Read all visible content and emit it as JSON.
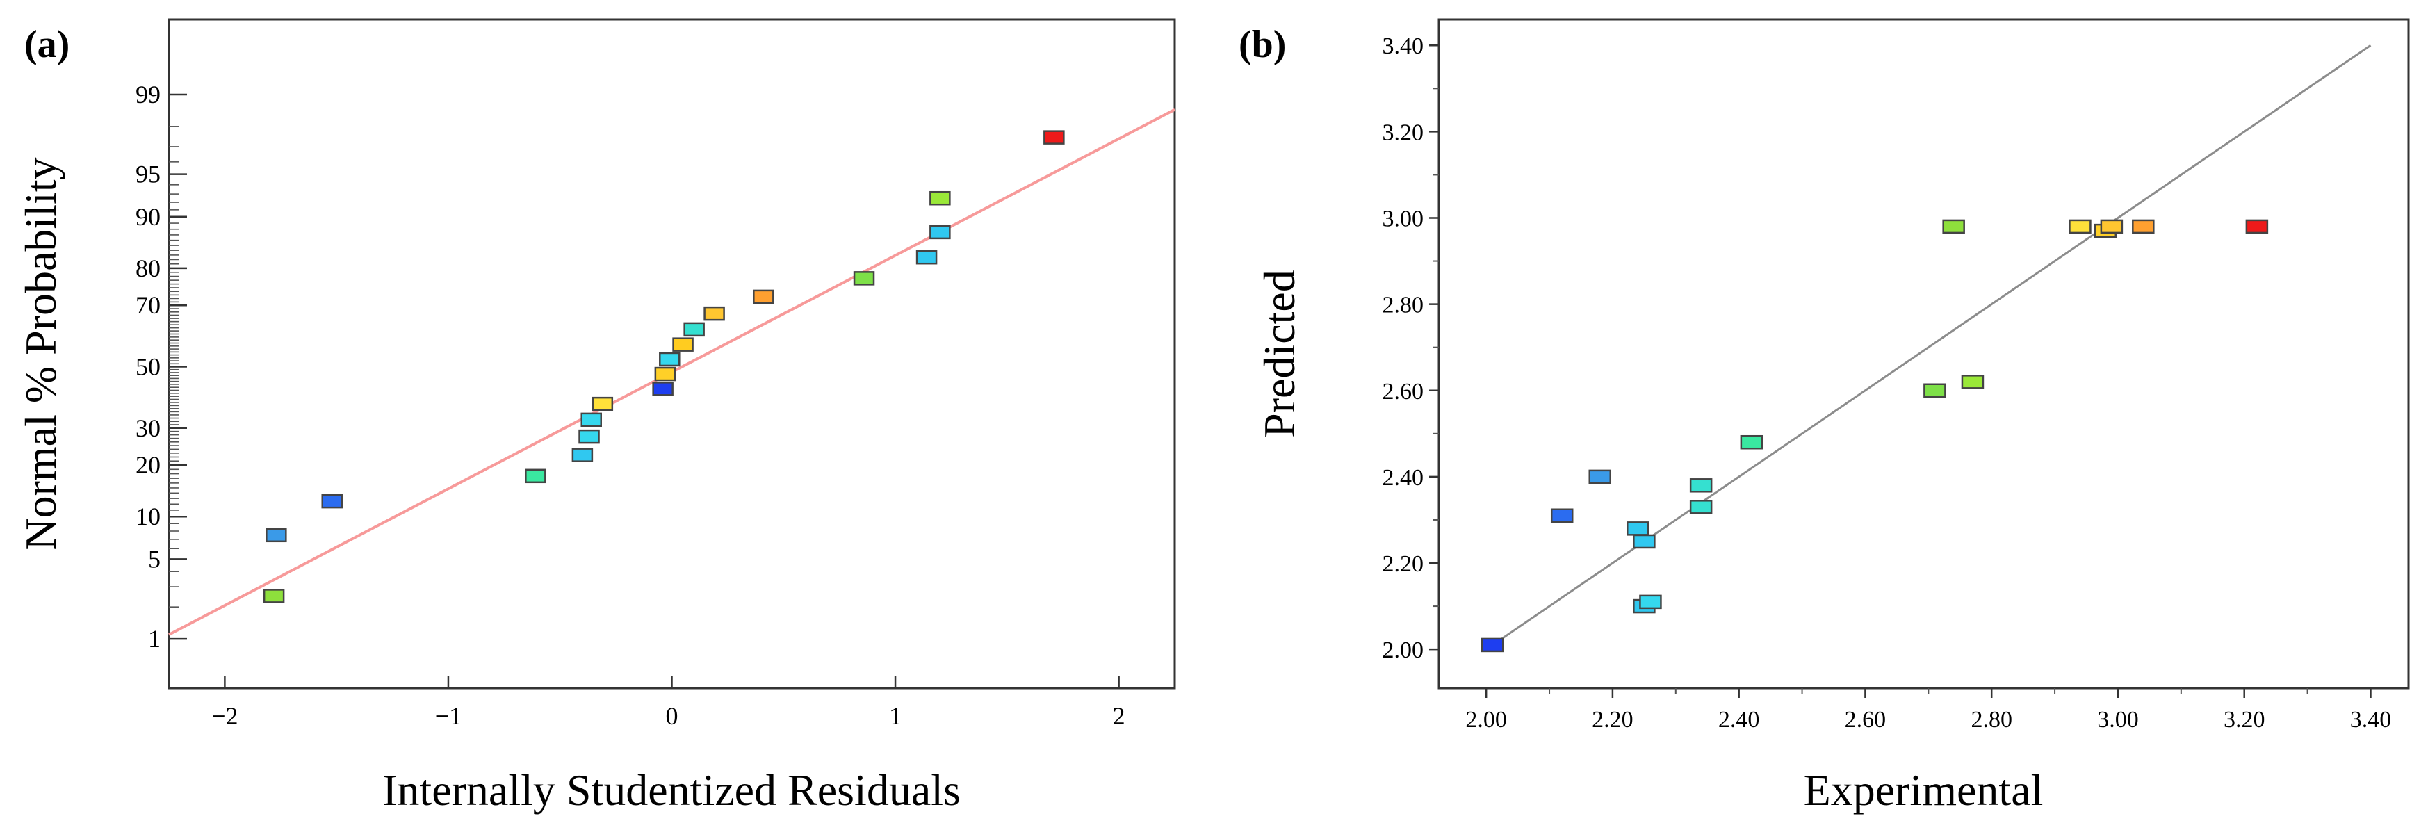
{
  "colors": {
    "fit_line_a": "#f79a9a",
    "fit_line_b": "#8c8c8c",
    "axis": "#333333"
  },
  "chart_data": [
    {
      "panel": "(a)",
      "type": "scatter",
      "xlabel": "Internally Studentized Residuals",
      "ylabel": "Normal % Probability",
      "xlim": [
        -2.25,
        2.25
      ],
      "x_ticks": [
        -2,
        -1,
        0,
        1,
        2
      ],
      "x_tick_labels": [
        "−2",
        "−1",
        "0",
        "1",
        "2"
      ],
      "y_scale": "normal-probability",
      "ylim": [
        0.3,
        99.85
      ],
      "y_ticks": [
        1,
        5,
        10,
        20,
        30,
        50,
        70,
        80,
        90,
        95,
        99
      ],
      "y_tick_labels": [
        "1",
        "5",
        "10",
        "20",
        "30",
        "50",
        "70",
        "80",
        "90",
        "95",
        "99"
      ],
      "reference_line": {
        "x": [
          -2.25,
          2.25
        ],
        "y": [
          1.1,
          98.6
        ]
      },
      "points": [
        {
          "x": -1.78,
          "y": 2.5,
          "color": "#8ee03c"
        },
        {
          "x": -1.77,
          "y": 7.5,
          "color": "#3a9ae8"
        },
        {
          "x": -1.52,
          "y": 12.5,
          "color": "#2b6cf0"
        },
        {
          "x": -0.61,
          "y": 17.5,
          "color": "#3ae8a0"
        },
        {
          "x": -0.4,
          "y": 22.5,
          "color": "#30c8f0"
        },
        {
          "x": -0.37,
          "y": 27.5,
          "color": "#35d8ee"
        },
        {
          "x": -0.36,
          "y": 32.5,
          "color": "#35d8ee"
        },
        {
          "x": -0.31,
          "y": 37.5,
          "color": "#ffe13a"
        },
        {
          "x": -0.04,
          "y": 42.5,
          "color": "#1e3ef0"
        },
        {
          "x": -0.03,
          "y": 47.5,
          "color": "#ffd028"
        },
        {
          "x": -0.01,
          "y": 52.5,
          "color": "#35d8ee"
        },
        {
          "x": 0.05,
          "y": 57.5,
          "color": "#ffcc20"
        },
        {
          "x": 0.1,
          "y": 62.5,
          "color": "#35e0d0"
        },
        {
          "x": 0.19,
          "y": 67.5,
          "color": "#ffc630"
        },
        {
          "x": 0.41,
          "y": 72.5,
          "color": "#ffa030"
        },
        {
          "x": 0.86,
          "y": 77.5,
          "color": "#7ee048"
        },
        {
          "x": 1.14,
          "y": 82.5,
          "color": "#30c8f0"
        },
        {
          "x": 1.2,
          "y": 87.5,
          "color": "#30c8f0"
        },
        {
          "x": 1.2,
          "y": 92.5,
          "color": "#9ae838"
        },
        {
          "x": 1.71,
          "y": 97.5,
          "color": "#ee1a1a"
        }
      ]
    },
    {
      "panel": "(b)",
      "type": "scatter",
      "xlabel": "Experimental",
      "ylabel": "Predicted",
      "xlim": [
        1.925,
        3.46
      ],
      "ylim": [
        1.91,
        3.46
      ],
      "x_ticks": [
        2.0,
        2.2,
        2.4,
        2.6,
        2.8,
        3.0,
        3.2,
        3.4
      ],
      "x_tick_labels": [
        "2.00",
        "2.20",
        "2.40",
        "2.60",
        "2.80",
        "3.00",
        "3.20",
        "3.40"
      ],
      "y_ticks": [
        2.0,
        2.2,
        2.4,
        2.6,
        2.8,
        3.0,
        3.2,
        3.4
      ],
      "y_tick_labels": [
        "2.00",
        "2.20",
        "2.40",
        "2.60",
        "2.80",
        "3.00",
        "3.20",
        "3.40"
      ],
      "reference_line": {
        "x": [
          2.0,
          3.4
        ],
        "y": [
          2.0,
          3.4
        ]
      },
      "points": [
        {
          "x": 2.01,
          "y": 2.01,
          "color": "#1e3ef0"
        },
        {
          "x": 2.12,
          "y": 2.31,
          "color": "#2b6cf0"
        },
        {
          "x": 2.18,
          "y": 2.4,
          "color": "#3a9ae8"
        },
        {
          "x": 2.24,
          "y": 2.28,
          "color": "#30c8f0"
        },
        {
          "x": 2.25,
          "y": 2.25,
          "color": "#30c8f0"
        },
        {
          "x": 2.25,
          "y": 2.1,
          "color": "#30c8f0"
        },
        {
          "x": 2.26,
          "y": 2.11,
          "color": "#35d8ee"
        },
        {
          "x": 2.34,
          "y": 2.38,
          "color": "#35e0d0"
        },
        {
          "x": 2.34,
          "y": 2.33,
          "color": "#35e0d0"
        },
        {
          "x": 2.42,
          "y": 2.48,
          "color": "#3ae8a0"
        },
        {
          "x": 2.71,
          "y": 2.6,
          "color": "#7ee048"
        },
        {
          "x": 2.74,
          "y": 2.98,
          "color": "#8ee03c"
        },
        {
          "x": 2.77,
          "y": 2.62,
          "color": "#9ae838"
        },
        {
          "x": 2.94,
          "y": 2.98,
          "color": "#ffe13a"
        },
        {
          "x": 2.98,
          "y": 2.97,
          "color": "#ffd028"
        },
        {
          "x": 2.99,
          "y": 2.98,
          "color": "#ffc630"
        },
        {
          "x": 3.04,
          "y": 2.98,
          "color": "#ffa030"
        },
        {
          "x": 3.22,
          "y": 2.98,
          "color": "#ee1a1a"
        }
      ]
    }
  ]
}
